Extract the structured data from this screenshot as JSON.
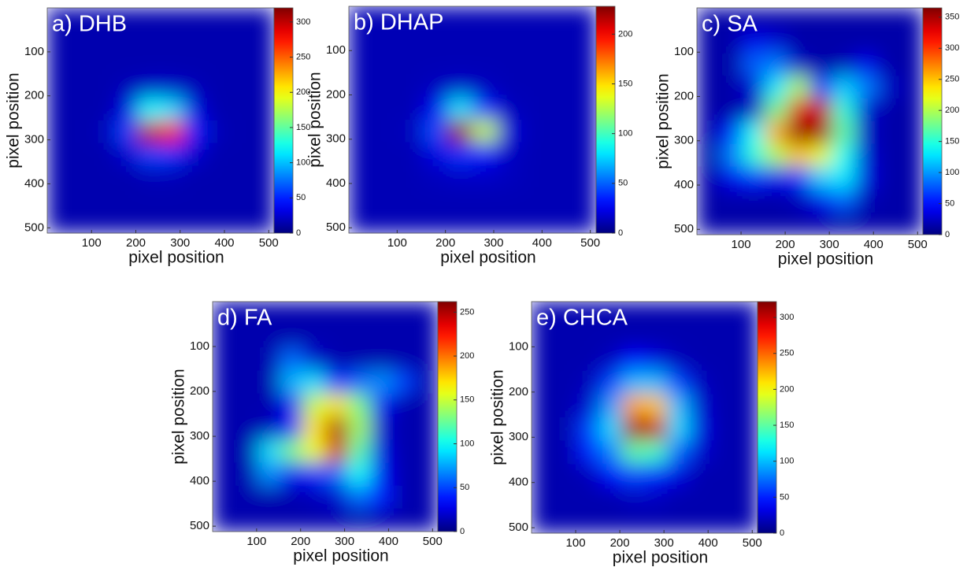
{
  "chart_data": [
    {
      "type": "heatmap",
      "title": "a) DHB",
      "xlabel": "pixel position",
      "ylabel": "pixel position",
      "colormap": "jet",
      "xlim": [
        0,
        512
      ],
      "ylim": [
        512,
        0
      ],
      "xticks": [
        100,
        200,
        300,
        400,
        500
      ],
      "yticks": [
        100,
        200,
        300,
        400,
        500
      ],
      "clim": [
        0,
        320
      ],
      "cticks": [
        0,
        50,
        100,
        150,
        200,
        250,
        300
      ],
      "z": [
        [
          15,
          15,
          15,
          15,
          15,
          15,
          15,
          15,
          15,
          15
        ],
        [
          15,
          15,
          15,
          15,
          15,
          15,
          15,
          15,
          15,
          15
        ],
        [
          15,
          15,
          15,
          15,
          15,
          15,
          15,
          15,
          15,
          15
        ],
        [
          15,
          15,
          15,
          18,
          22,
          22,
          18,
          15,
          15,
          15
        ],
        [
          15,
          15,
          15,
          30,
          120,
          110,
          30,
          15,
          15,
          15
        ],
        [
          15,
          15,
          18,
          60,
          300,
          280,
          50,
          18,
          15,
          15
        ],
        [
          15,
          15,
          15,
          25,
          60,
          55,
          25,
          15,
          15,
          15
        ],
        [
          15,
          15,
          15,
          15,
          18,
          18,
          15,
          15,
          15,
          15
        ],
        [
          15,
          15,
          15,
          15,
          15,
          15,
          15,
          15,
          15,
          15
        ],
        [
          15,
          15,
          15,
          15,
          15,
          15,
          15,
          15,
          15,
          15
        ]
      ]
    },
    {
      "type": "heatmap",
      "title": "b) DHAP",
      "xlabel": "pixel position",
      "ylabel": "pixel position",
      "colormap": "jet",
      "xlim": [
        0,
        512
      ],
      "ylim": [
        512,
        0
      ],
      "xticks": [
        100,
        200,
        300,
        400,
        500
      ],
      "yticks": [
        100,
        200,
        300,
        400,
        500
      ],
      "clim": [
        0,
        228
      ],
      "cticks": [
        0,
        50,
        100,
        150,
        200
      ],
      "z": [
        [
          12,
          12,
          12,
          12,
          12,
          12,
          12,
          12,
          12,
          12
        ],
        [
          12,
          12,
          12,
          12,
          12,
          12,
          12,
          12,
          12,
          12
        ],
        [
          12,
          12,
          12,
          12,
          12,
          12,
          12,
          12,
          12,
          12
        ],
        [
          12,
          12,
          12,
          14,
          16,
          14,
          12,
          12,
          12,
          12
        ],
        [
          12,
          12,
          12,
          25,
          80,
          35,
          14,
          12,
          12,
          12
        ],
        [
          12,
          12,
          14,
          45,
          220,
          130,
          20,
          12,
          12,
          12
        ],
        [
          12,
          12,
          12,
          22,
          40,
          30,
          15,
          12,
          12,
          12
        ],
        [
          12,
          12,
          12,
          14,
          16,
          16,
          14,
          12,
          12,
          12
        ],
        [
          12,
          12,
          12,
          12,
          12,
          12,
          12,
          12,
          12,
          12
        ],
        [
          12,
          12,
          12,
          12,
          12,
          12,
          12,
          12,
          12,
          12
        ]
      ]
    },
    {
      "type": "heatmap",
      "title": "c) SA",
      "xlabel": "pixel position",
      "ylabel": "pixel position",
      "colormap": "jet",
      "xlim": [
        0,
        512
      ],
      "ylim": [
        512,
        0
      ],
      "xticks": [
        100,
        200,
        300,
        400,
        500
      ],
      "yticks": [
        100,
        200,
        300,
        400,
        500
      ],
      "clim": [
        0,
        365
      ],
      "cticks": [
        0,
        50,
        100,
        150,
        200,
        250,
        300,
        350
      ],
      "z": [
        [
          15,
          15,
          15,
          15,
          15,
          15,
          15,
          15,
          15,
          15
        ],
        [
          15,
          15,
          40,
          30,
          15,
          15,
          15,
          15,
          15,
          15
        ],
        [
          15,
          15,
          80,
          90,
          25,
          15,
          20,
          40,
          15,
          15
        ],
        [
          15,
          15,
          30,
          130,
          200,
          60,
          120,
          90,
          25,
          15
        ],
        [
          15,
          15,
          25,
          180,
          330,
          340,
          150,
          30,
          15,
          15
        ],
        [
          15,
          60,
          140,
          260,
          360,
          350,
          170,
          25,
          15,
          15
        ],
        [
          15,
          90,
          150,
          200,
          250,
          220,
          140,
          30,
          15,
          15
        ],
        [
          15,
          40,
          60,
          40,
          60,
          120,
          130,
          35,
          15,
          15
        ],
        [
          15,
          15,
          15,
          15,
          20,
          40,
          80,
          20,
          15,
          15
        ],
        [
          15,
          15,
          15,
          15,
          15,
          15,
          15,
          15,
          15,
          15
        ]
      ]
    },
    {
      "type": "heatmap",
      "title": "d) FA",
      "xlabel": "pixel position",
      "ylabel": "pixel position",
      "colormap": "jet",
      "xlim": [
        0,
        512
      ],
      "ylim": [
        512,
        0
      ],
      "xticks": [
        100,
        200,
        300,
        400,
        500
      ],
      "yticks": [
        100,
        200,
        300,
        400,
        500
      ],
      "clim": [
        0,
        262
      ],
      "cticks": [
        0,
        50,
        100,
        150,
        200,
        250
      ],
      "z": [
        [
          12,
          12,
          12,
          12,
          12,
          12,
          12,
          12,
          12,
          12
        ],
        [
          12,
          12,
          12,
          12,
          12,
          12,
          12,
          12,
          12,
          12
        ],
        [
          12,
          12,
          12,
          60,
          20,
          12,
          12,
          12,
          12,
          12
        ],
        [
          12,
          12,
          12,
          80,
          90,
          40,
          60,
          70,
          50,
          12
        ],
        [
          12,
          12,
          12,
          30,
          150,
          170,
          130,
          30,
          12,
          12
        ],
        [
          12,
          12,
          15,
          40,
          170,
          250,
          140,
          20,
          12,
          12
        ],
        [
          12,
          12,
          90,
          130,
          160,
          240,
          120,
          25,
          12,
          12
        ],
        [
          12,
          12,
          70,
          30,
          40,
          60,
          100,
          30,
          12,
          12
        ],
        [
          12,
          12,
          12,
          12,
          15,
          20,
          60,
          40,
          12,
          12
        ],
        [
          12,
          12,
          12,
          12,
          12,
          12,
          12,
          12,
          12,
          12
        ]
      ]
    },
    {
      "type": "heatmap",
      "title": "e) CHCA",
      "xlabel": "pixel position",
      "ylabel": "pixel position",
      "colormap": "jet",
      "xlim": [
        0,
        512
      ],
      "ylim": [
        512,
        0
      ],
      "xticks": [
        100,
        200,
        300,
        400,
        500
      ],
      "yticks": [
        100,
        200,
        300,
        400,
        500
      ],
      "clim": [
        0,
        322
      ],
      "cticks": [
        0,
        50,
        100,
        150,
        200,
        250,
        300
      ],
      "z": [
        [
          15,
          15,
          15,
          15,
          15,
          15,
          15,
          15,
          15,
          15
        ],
        [
          15,
          15,
          15,
          15,
          15,
          15,
          15,
          15,
          15,
          15
        ],
        [
          15,
          15,
          15,
          20,
          40,
          30,
          18,
          15,
          15,
          15
        ],
        [
          15,
          15,
          18,
          60,
          100,
          100,
          60,
          20,
          15,
          15
        ],
        [
          15,
          15,
          25,
          90,
          230,
          220,
          100,
          25,
          15,
          15
        ],
        [
          15,
          15,
          60,
          110,
          310,
          300,
          110,
          30,
          15,
          15
        ],
        [
          15,
          15,
          50,
          80,
          150,
          140,
          70,
          25,
          15,
          15
        ],
        [
          15,
          15,
          18,
          40,
          60,
          50,
          30,
          15,
          15,
          15
        ],
        [
          15,
          15,
          15,
          15,
          20,
          20,
          15,
          15,
          15,
          15
        ],
        [
          15,
          15,
          15,
          15,
          15,
          15,
          15,
          15,
          15,
          15
        ]
      ]
    }
  ]
}
